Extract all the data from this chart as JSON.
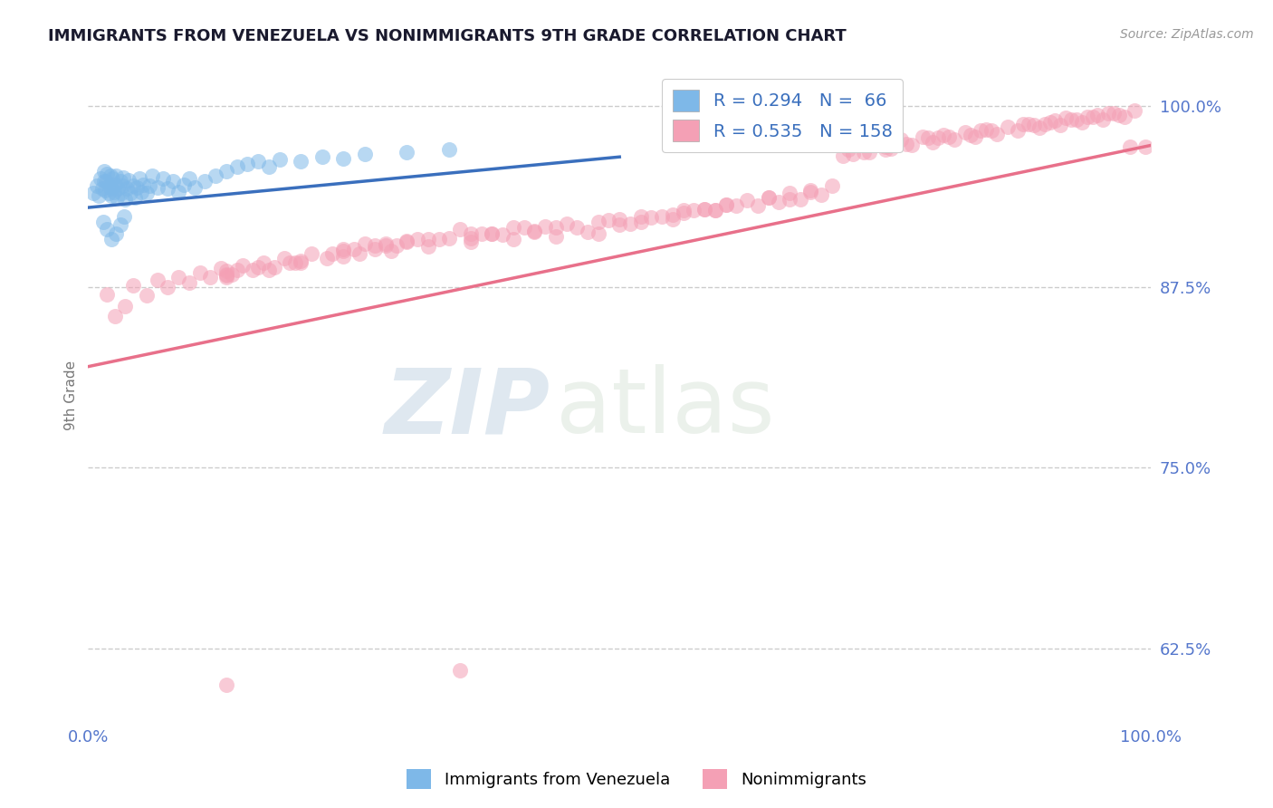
{
  "title": "IMMIGRANTS FROM VENEZUELA VS NONIMMIGRANTS 9TH GRADE CORRELATION CHART",
  "source": "Source: ZipAtlas.com",
  "ylabel": "9th Grade",
  "x_min": 0.0,
  "x_max": 1.0,
  "y_min": 0.575,
  "y_max": 1.025,
  "y_ticks": [
    0.625,
    0.75,
    0.875,
    1.0
  ],
  "y_tick_labels": [
    "62.5%",
    "75.0%",
    "87.5%",
    "100.0%"
  ],
  "x_tick_labels": [
    "0.0%",
    "100.0%"
  ],
  "blue_R": 0.294,
  "blue_N": 66,
  "pink_R": 0.535,
  "pink_N": 158,
  "blue_color": "#7EB8E8",
  "pink_color": "#F4A0B5",
  "blue_line_color": "#3a6fbd",
  "pink_line_color": "#e8708a",
  "legend_label_blue": "Immigrants from Venezuela",
  "legend_label_pink": "Nonimmigrants",
  "watermark_zip": "ZIP",
  "watermark_atlas": "atlas",
  "background_color": "#ffffff",
  "grid_color": "#cccccc",
  "title_color": "#1a1a2e",
  "tick_color": "#5577cc",
  "blue_trend_x0": 0.0,
  "blue_trend_x1": 0.5,
  "blue_trend_y0": 0.93,
  "blue_trend_y1": 0.965,
  "pink_trend_x0": 0.0,
  "pink_trend_x1": 1.0,
  "pink_trend_y0": 0.82,
  "pink_trend_y1": 0.973,
  "blue_x": [
    0.005,
    0.008,
    0.01,
    0.012,
    0.013,
    0.015,
    0.015,
    0.016,
    0.017,
    0.018,
    0.019,
    0.02,
    0.021,
    0.022,
    0.022,
    0.023,
    0.024,
    0.025,
    0.026,
    0.027,
    0.028,
    0.03,
    0.031,
    0.032,
    0.033,
    0.035,
    0.036,
    0.038,
    0.04,
    0.042,
    0.044,
    0.046,
    0.048,
    0.05,
    0.052,
    0.055,
    0.058,
    0.06,
    0.065,
    0.07,
    0.075,
    0.08,
    0.085,
    0.09,
    0.095,
    0.1,
    0.11,
    0.12,
    0.13,
    0.14,
    0.15,
    0.16,
    0.17,
    0.18,
    0.2,
    0.22,
    0.24,
    0.26,
    0.3,
    0.34,
    0.014,
    0.018,
    0.022,
    0.026,
    0.03,
    0.034
  ],
  "blue_y": [
    0.94,
    0.945,
    0.938,
    0.95,
    0.943,
    0.948,
    0.955,
    0.942,
    0.948,
    0.953,
    0.94,
    0.945,
    0.952,
    0.938,
    0.943,
    0.95,
    0.941,
    0.946,
    0.952,
    0.937,
    0.943,
    0.948,
    0.94,
    0.945,
    0.951,
    0.936,
    0.943,
    0.949,
    0.94,
    0.945,
    0.937,
    0.944,
    0.95,
    0.941,
    0.946,
    0.94,
    0.945,
    0.952,
    0.944,
    0.95,
    0.943,
    0.948,
    0.941,
    0.946,
    0.95,
    0.944,
    0.948,
    0.952,
    0.955,
    0.958,
    0.96,
    0.962,
    0.958,
    0.963,
    0.962,
    0.965,
    0.964,
    0.967,
    0.968,
    0.97,
    0.92,
    0.915,
    0.908,
    0.912,
    0.918,
    0.924
  ],
  "pink_x": [
    0.018,
    0.025,
    0.035,
    0.042,
    0.055,
    0.065,
    0.075,
    0.085,
    0.095,
    0.105,
    0.115,
    0.125,
    0.135,
    0.145,
    0.155,
    0.165,
    0.175,
    0.185,
    0.195,
    0.21,
    0.225,
    0.24,
    0.255,
    0.27,
    0.285,
    0.3,
    0.32,
    0.34,
    0.36,
    0.38,
    0.4,
    0.42,
    0.44,
    0.46,
    0.48,
    0.5,
    0.52,
    0.54,
    0.56,
    0.58,
    0.6,
    0.62,
    0.64,
    0.66,
    0.68,
    0.7,
    0.715,
    0.725,
    0.735,
    0.745,
    0.755,
    0.765,
    0.775,
    0.785,
    0.795,
    0.805,
    0.815,
    0.825,
    0.835,
    0.845,
    0.855,
    0.865,
    0.875,
    0.885,
    0.895,
    0.905,
    0.915,
    0.925,
    0.935,
    0.945,
    0.955,
    0.965,
    0.975,
    0.985,
    0.995,
    0.26,
    0.31,
    0.35,
    0.39,
    0.43,
    0.47,
    0.51,
    0.55,
    0.59,
    0.63,
    0.67,
    0.71,
    0.75,
    0.79,
    0.13,
    0.16,
    0.2,
    0.24,
    0.28,
    0.14,
    0.19,
    0.23,
    0.13,
    0.42,
    0.36,
    0.3,
    0.45,
    0.49,
    0.53,
    0.57,
    0.61,
    0.65,
    0.69,
    0.73,
    0.77,
    0.81,
    0.85,
    0.89,
    0.93,
    0.97,
    0.38,
    0.44,
    0.48,
    0.52,
    0.56,
    0.6,
    0.64,
    0.68,
    0.72,
    0.76,
    0.8,
    0.84,
    0.88,
    0.92,
    0.96,
    0.29,
    0.33,
    0.37,
    0.41,
    0.55,
    0.59,
    0.13,
    0.9,
    0.94,
    0.98,
    0.25,
    0.28,
    0.32,
    0.36,
    0.4,
    0.5,
    0.58,
    0.66,
    0.75,
    0.83,
    0.91,
    0.95,
    0.13,
    0.17,
    0.2,
    0.24,
    0.27,
    0.35
  ],
  "pink_y": [
    0.87,
    0.855,
    0.862,
    0.876,
    0.869,
    0.88,
    0.875,
    0.882,
    0.878,
    0.885,
    0.882,
    0.888,
    0.884,
    0.89,
    0.887,
    0.892,
    0.889,
    0.895,
    0.892,
    0.898,
    0.895,
    0.901,
    0.898,
    0.904,
    0.9,
    0.907,
    0.903,
    0.909,
    0.906,
    0.912,
    0.908,
    0.914,
    0.91,
    0.916,
    0.912,
    0.918,
    0.92,
    0.924,
    0.926,
    0.929,
    0.932,
    0.935,
    0.937,
    0.94,
    0.942,
    0.945,
    0.97,
    0.975,
    0.968,
    0.974,
    0.971,
    0.977,
    0.973,
    0.979,
    0.975,
    0.98,
    0.977,
    0.982,
    0.979,
    0.984,
    0.981,
    0.986,
    0.983,
    0.988,
    0.985,
    0.989,
    0.987,
    0.991,
    0.989,
    0.993,
    0.991,
    0.995,
    0.993,
    0.997,
    0.972,
    0.905,
    0.908,
    0.915,
    0.911,
    0.917,
    0.913,
    0.919,
    0.922,
    0.928,
    0.931,
    0.936,
    0.966,
    0.972,
    0.978,
    0.886,
    0.889,
    0.893,
    0.9,
    0.904,
    0.887,
    0.892,
    0.898,
    0.884,
    0.913,
    0.909,
    0.906,
    0.919,
    0.921,
    0.923,
    0.928,
    0.931,
    0.934,
    0.939,
    0.968,
    0.974,
    0.979,
    0.983,
    0.987,
    0.991,
    0.994,
    0.912,
    0.916,
    0.92,
    0.924,
    0.928,
    0.932,
    0.937,
    0.941,
    0.967,
    0.973,
    0.978,
    0.983,
    0.988,
    0.992,
    0.995,
    0.904,
    0.908,
    0.912,
    0.916,
    0.925,
    0.928,
    0.882,
    0.988,
    0.993,
    0.972,
    0.901,
    0.905,
    0.908,
    0.912,
    0.916,
    0.922,
    0.929,
    0.936,
    0.97,
    0.98,
    0.99,
    0.994,
    0.883,
    0.887,
    0.892,
    0.896,
    0.901,
    0.61
  ],
  "pink_outlier_x": [
    0.13
  ],
  "pink_outlier_y": [
    0.6
  ]
}
